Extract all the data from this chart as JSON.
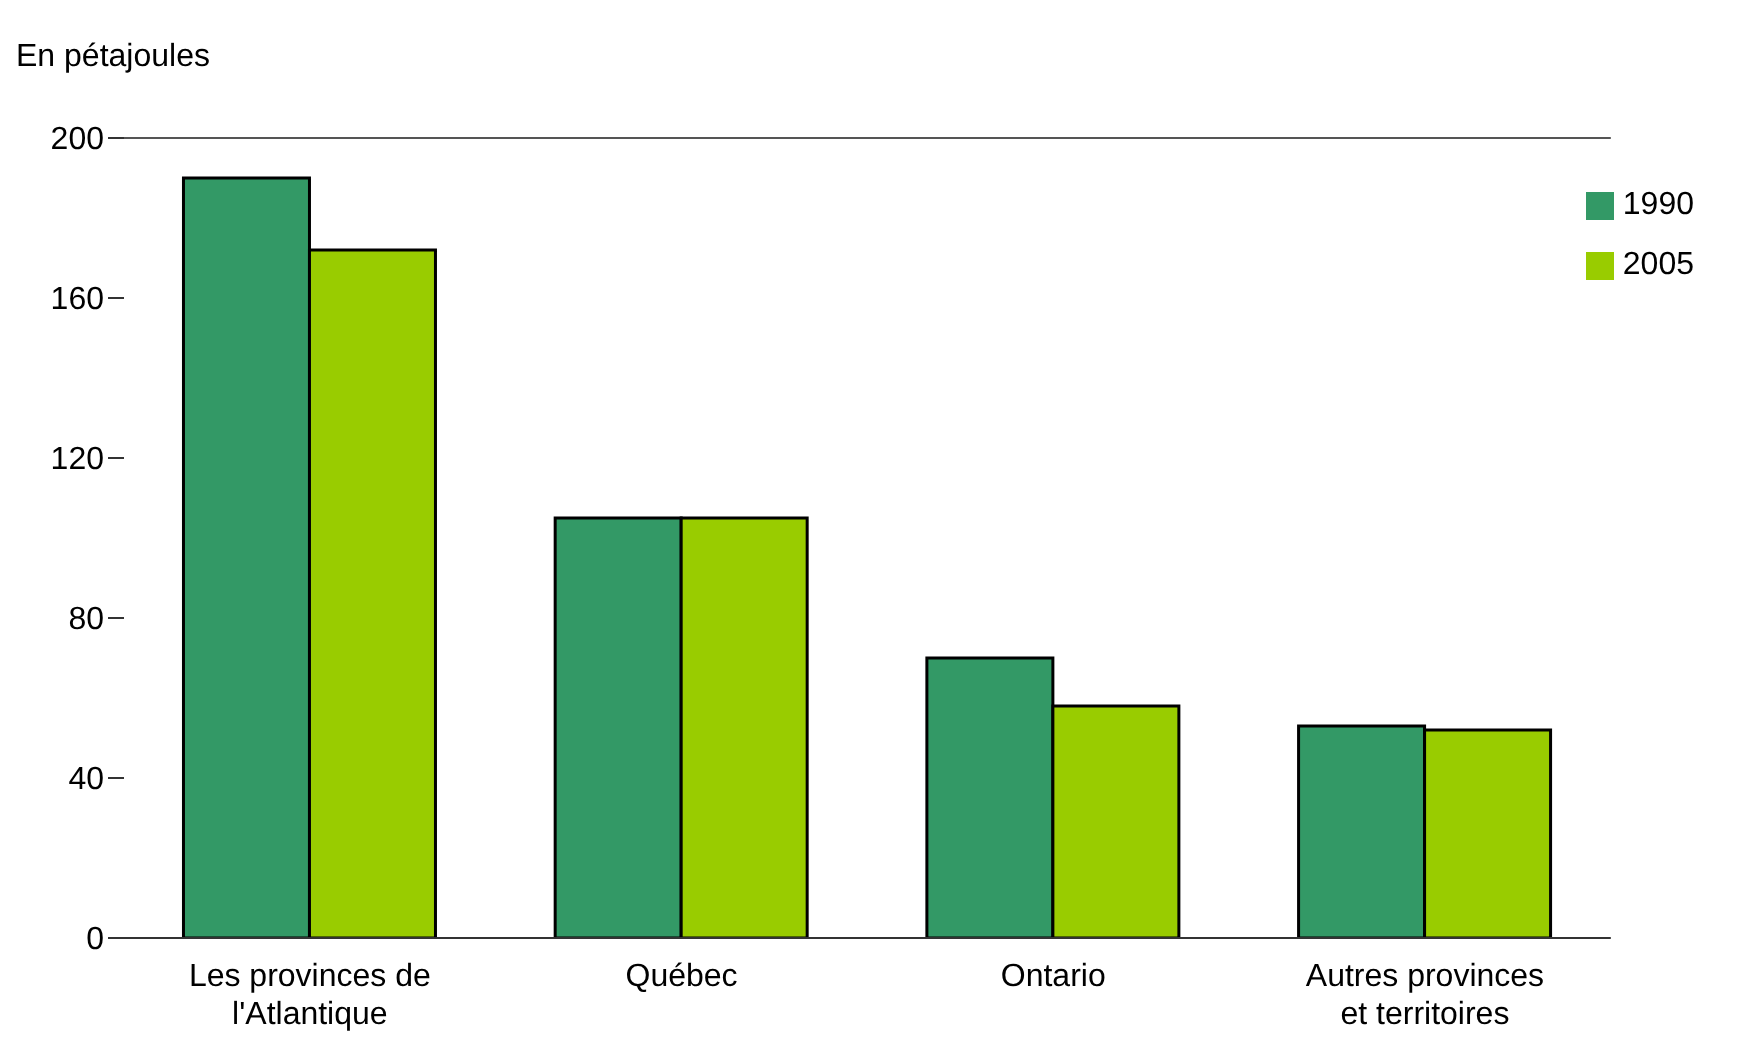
{
  "chart_data": {
    "type": "bar",
    "ylabel": "En pétajoules",
    "categories": [
      "Les provinces de l'Atlantique",
      "Québec",
      "Ontario",
      "Autres provinces et territoires"
    ],
    "series": [
      {
        "name": "1990",
        "color": "#339966",
        "values": [
          190,
          105,
          70,
          53
        ]
      },
      {
        "name": "2005",
        "color": "#99cc00",
        "values": [
          172,
          105,
          58,
          52
        ]
      }
    ],
    "ylim": [
      0,
      200
    ],
    "yticks": [
      0,
      40,
      80,
      120,
      160,
      200
    ],
    "grid": false,
    "legend": "top right"
  }
}
